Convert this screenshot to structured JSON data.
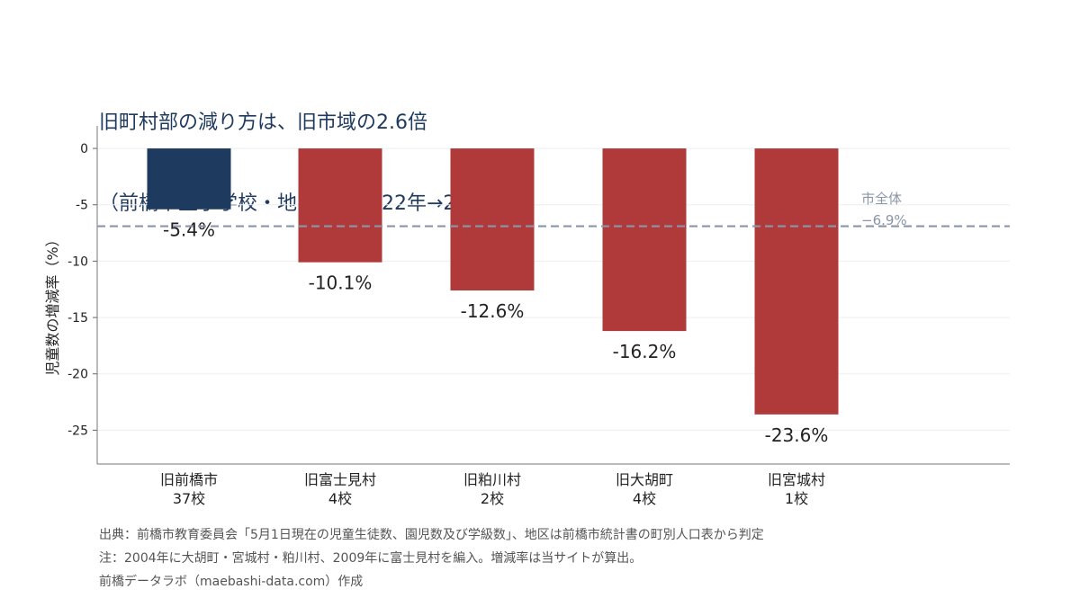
{
  "chart_data": {
    "type": "bar",
    "title": "旧町村部の減り方は、旧市域の2.6倍",
    "subtitle": "（前橋市立小学校・地区別／2022年→2026年）",
    "ylabel": "児童数の増減率（%）",
    "xlabel": "",
    "ylim": [
      -28,
      2
    ],
    "yticks": [
      0,
      -5,
      -10,
      -15,
      -20,
      -25
    ],
    "ytick_labels": [
      "0",
      "-5",
      "-10",
      "-15",
      "-20",
      "-25"
    ],
    "categories": [
      {
        "name": "旧前橋市",
        "schools": "37校"
      },
      {
        "name": "旧富士見村",
        "schools": "4校"
      },
      {
        "name": "旧粕川村",
        "schools": "2校"
      },
      {
        "name": "旧大胡町",
        "schools": "4校"
      },
      {
        "name": "旧宮城村",
        "schools": "1校"
      }
    ],
    "values": [
      -5.4,
      -10.1,
      -12.6,
      -16.2,
      -23.6
    ],
    "data_labels": [
      "-5.4%",
      "-10.1%",
      "-12.6%",
      "-16.2%",
      "-23.6%"
    ],
    "bar_colors": [
      "#1f3a5f",
      "#b03a3a",
      "#b03a3a",
      "#b03a3a",
      "#b03a3a"
    ],
    "reference_line": {
      "value": -6.9,
      "label": "市全体",
      "value_label": "−6.9%",
      "color": "#8a96a8"
    },
    "grid": true
  },
  "footer": {
    "source": "出典：前橋市教育委員会「5月1日現在の児童生徒数、園児数及び学級数」、地区は前橋市統計書の町別人口表から判定",
    "note": "注：2004年に大胡町・宮城村・粕川村、2009年に富士見村を編入。増減率は当サイトが算出。",
    "credit": "前橋データラボ（maebashi-data.com）作成"
  }
}
